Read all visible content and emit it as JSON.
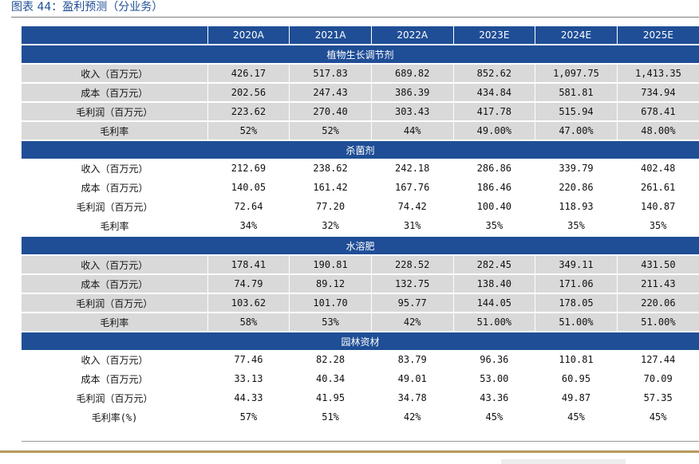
{
  "caption": "图表 44：盈利预测（分业务）",
  "columns": [
    "2020A",
    "2021A",
    "2022A",
    "2023E",
    "2024E",
    "2025E"
  ],
  "sections": [
    {
      "title": "植物生长调节剂",
      "shaded": true,
      "rows": [
        {
          "label": "收入（百万元）",
          "values": [
            "426.17",
            "517.83",
            "689.82",
            "852.62",
            "1,097.75",
            "1,413.35"
          ]
        },
        {
          "label": "成本（百万元）",
          "values": [
            "202.56",
            "247.43",
            "386.39",
            "434.84",
            "581.81",
            "734.94"
          ]
        },
        {
          "label": "毛利润（百万元）",
          "values": [
            "223.62",
            "270.40",
            "303.43",
            "417.78",
            "515.94",
            "678.41"
          ]
        },
        {
          "label": "毛利率",
          "values": [
            "52%",
            "52%",
            "44%",
            "49.00%",
            "47.00%",
            "48.00%"
          ]
        }
      ]
    },
    {
      "title": "杀菌剂",
      "shaded": false,
      "rows": [
        {
          "label": "收入（百万元）",
          "values": [
            "212.69",
            "238.62",
            "242.18",
            "286.86",
            "339.79",
            "402.48"
          ]
        },
        {
          "label": "成本（百万元）",
          "values": [
            "140.05",
            "161.42",
            "167.76",
            "186.46",
            "220.86",
            "261.61"
          ]
        },
        {
          "label": "毛利润（百万元）",
          "values": [
            "72.64",
            "77.20",
            "74.42",
            "100.40",
            "118.93",
            "140.87"
          ]
        },
        {
          "label": "毛利率",
          "values": [
            "34%",
            "32%",
            "31%",
            "35%",
            "35%",
            "35%"
          ]
        }
      ]
    },
    {
      "title": "水溶肥",
      "shaded": true,
      "rows": [
        {
          "label": "收入（百万元）",
          "values": [
            "178.41",
            "190.81",
            "228.52",
            "282.45",
            "349.11",
            "431.50"
          ]
        },
        {
          "label": "成本（百万元）",
          "values": [
            "74.79",
            "89.12",
            "132.75",
            "138.40",
            "171.06",
            "211.43"
          ]
        },
        {
          "label": "毛利润（百万元）",
          "values": [
            "103.62",
            "101.70",
            "95.77",
            "144.05",
            "178.05",
            "220.06"
          ]
        },
        {
          "label": "毛利率",
          "values": [
            "58%",
            "53%",
            "42%",
            "51.00%",
            "51.00%",
            "51.00%"
          ]
        }
      ]
    },
    {
      "title": "园林资材",
      "shaded": false,
      "rows": [
        {
          "label": "收入（百万元）",
          "values": [
            "77.46",
            "82.28",
            "83.79",
            "96.36",
            "110.81",
            "127.44"
          ]
        },
        {
          "label": "成本（百万元）",
          "values": [
            "33.13",
            "40.34",
            "49.01",
            "53.00",
            "60.95",
            "70.09"
          ]
        },
        {
          "label": "毛利润（百万元）",
          "values": [
            "44.33",
            "41.95",
            "34.78",
            "43.36",
            "49.87",
            "57.35"
          ]
        },
        {
          "label": "毛利率(%)",
          "values": [
            "57%",
            "51%",
            "42%",
            "45%",
            "45%",
            "45%"
          ]
        }
      ]
    }
  ],
  "colors": {
    "header_blue": "#1F4E96",
    "row_grey": "#D9D9D9",
    "footer_gold": "#B79A5A"
  }
}
